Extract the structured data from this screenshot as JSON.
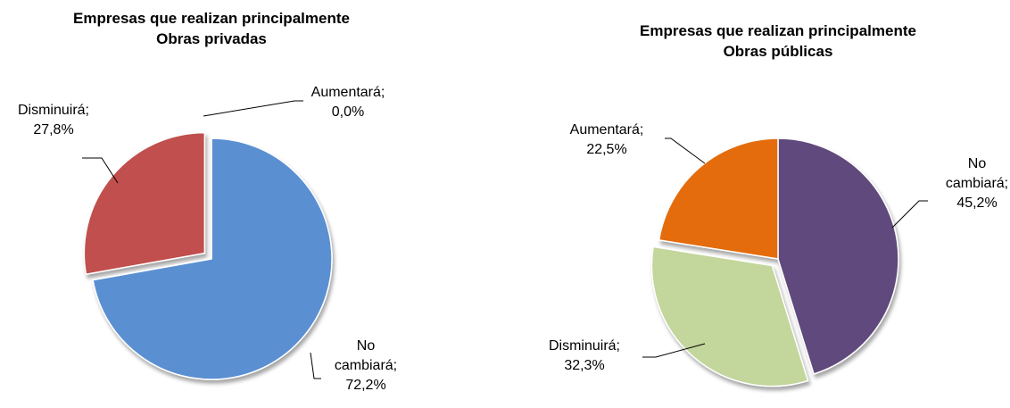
{
  "chart_data": [
    {
      "type": "pie",
      "title": [
        "Empresas que realizan principalmente",
        "Obras privadas"
      ],
      "categories": [
        "No cambiará;",
        "Disminuirá;",
        "Aumentará;"
      ],
      "values": [
        72.2,
        27.8,
        0.0
      ],
      "value_labels": [
        "72,2%",
        "27,8%",
        "0,0%"
      ],
      "colors": [
        "#5a8fd2",
        "#c0504d",
        "#9bbb59"
      ]
    },
    {
      "type": "pie",
      "title": [
        "Empresas que realizan principalmente",
        "Obras públicas"
      ],
      "categories": [
        "No cambiará;",
        "Disminuirá;",
        "Aumentará;"
      ],
      "values": [
        45.2,
        32.3,
        22.5
      ],
      "value_labels": [
        "45,2%",
        "32,3%",
        "22,5%"
      ],
      "colors": [
        "#604a7b",
        "#c3d69b",
        "#e46c0a"
      ]
    }
  ]
}
